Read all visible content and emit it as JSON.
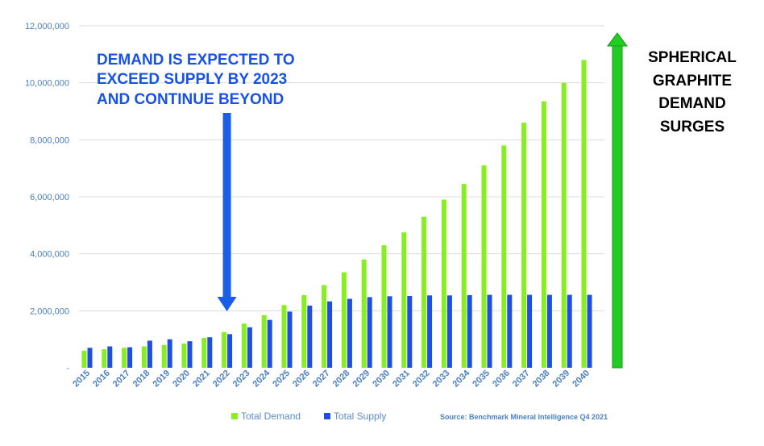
{
  "chart_data": {
    "type": "bar",
    "categories": [
      "2015",
      "2016",
      "2017",
      "2018",
      "2019",
      "2020",
      "2021",
      "2022",
      "2023",
      "2024",
      "2025",
      "2026",
      "2027",
      "2028",
      "2029",
      "2030",
      "2031",
      "2032",
      "2033",
      "2034",
      "2035",
      "2036",
      "2037",
      "2038",
      "2039",
      "2040"
    ],
    "series": [
      {
        "name": "Total Demand",
        "color": "#88ee22",
        "values": [
          600000,
          650000,
          700000,
          750000,
          800000,
          850000,
          1050000,
          1250000,
          1550000,
          1850000,
          2200000,
          2550000,
          2900000,
          3350000,
          3800000,
          4300000,
          4750000,
          5300000,
          5900000,
          6450000,
          7100000,
          7800000,
          8600000,
          9350000,
          10000000,
          10800000
        ]
      },
      {
        "name": "Total Supply",
        "color": "#1f4ee0",
        "values": [
          700000,
          750000,
          720000,
          950000,
          1000000,
          930000,
          1070000,
          1180000,
          1420000,
          1680000,
          1970000,
          2180000,
          2330000,
          2420000,
          2480000,
          2510000,
          2520000,
          2540000,
          2540000,
          2550000,
          2560000,
          2560000,
          2560000,
          2560000,
          2560000,
          2560000
        ]
      }
    ],
    "ylim": [
      0,
      12000000
    ],
    "yticks": [
      {
        "value": 0,
        "label": "-"
      },
      {
        "value": 2000000,
        "label": "2,000,000"
      },
      {
        "value": 4000000,
        "label": "4,000,000"
      },
      {
        "value": 6000000,
        "label": "6,000,000"
      },
      {
        "value": 8000000,
        "label": "8,000,000"
      },
      {
        "value": 10000000,
        "label": "10,000,000"
      },
      {
        "value": 12000000,
        "label": "12,000,000"
      }
    ],
    "grid": true,
    "legend_position": "bottom",
    "source": "Source: Benchmark Mineral Intelligence Q4 2021",
    "annotations": {
      "demand_text": [
        "DEMAND IS EXPECTED TO",
        "EXCEED SUPPLY BY 2023",
        "AND CONTINUE BEYOND"
      ],
      "demand_arrow_color": "#1a5de8",
      "demand_arrow_target": "2022",
      "surge_text": [
        "SPHERICAL",
        "GRAPHITE",
        "DEMAND",
        "SURGES"
      ],
      "surge_arrow_color": "#22cc22"
    }
  }
}
